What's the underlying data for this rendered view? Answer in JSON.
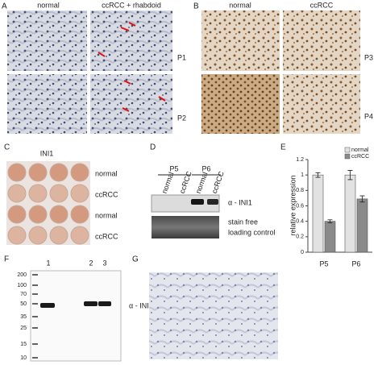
{
  "panels": {
    "A": {
      "label": "A",
      "columns": [
        "normal",
        "ccRCC + rhabdoid"
      ],
      "rows": [
        "P1",
        "P2"
      ]
    },
    "B": {
      "label": "B",
      "columns": [
        "normal",
        "ccRCC"
      ],
      "rows": [
        "P3",
        "P4"
      ]
    },
    "C": {
      "label": "C",
      "title": "INI1",
      "rows": [
        "normal",
        "ccRCC",
        "normal",
        "ccRCC"
      ]
    },
    "D": {
      "label": "D",
      "groups": [
        "P5",
        "P6"
      ],
      "lanes": [
        "normal",
        "ccRCC",
        "normal",
        "ccRCC"
      ],
      "blot_label": "α - INI1",
      "control_label": [
        "stain free",
        "loading control"
      ]
    },
    "E": {
      "label": "E"
    },
    "F": {
      "label": "F",
      "lanes": [
        "1",
        "2",
        "3"
      ],
      "ladder": [
        200,
        100,
        70,
        50,
        35,
        25,
        15,
        10
      ],
      "blot_label": "α - INI1"
    },
    "G": {
      "label": "G"
    }
  },
  "chart_data": {
    "type": "bar",
    "ylabel": "relative expression",
    "categories": [
      "P5",
      "P6"
    ],
    "series": [
      {
        "name": "normal",
        "color": "#e2e2e2",
        "values": [
          1.0,
          1.0
        ],
        "errors": [
          0.03,
          0.06
        ]
      },
      {
        "name": "ccRCC",
        "color": "#8a8a8a",
        "values": [
          0.4,
          0.69
        ],
        "errors": [
          0.02,
          0.04
        ]
      }
    ],
    "ylim": [
      0,
      1.2
    ],
    "yticks": [
      0,
      0.2,
      0.4,
      0.6,
      0.8,
      1,
      1.2
    ],
    "legend": "upper right"
  }
}
